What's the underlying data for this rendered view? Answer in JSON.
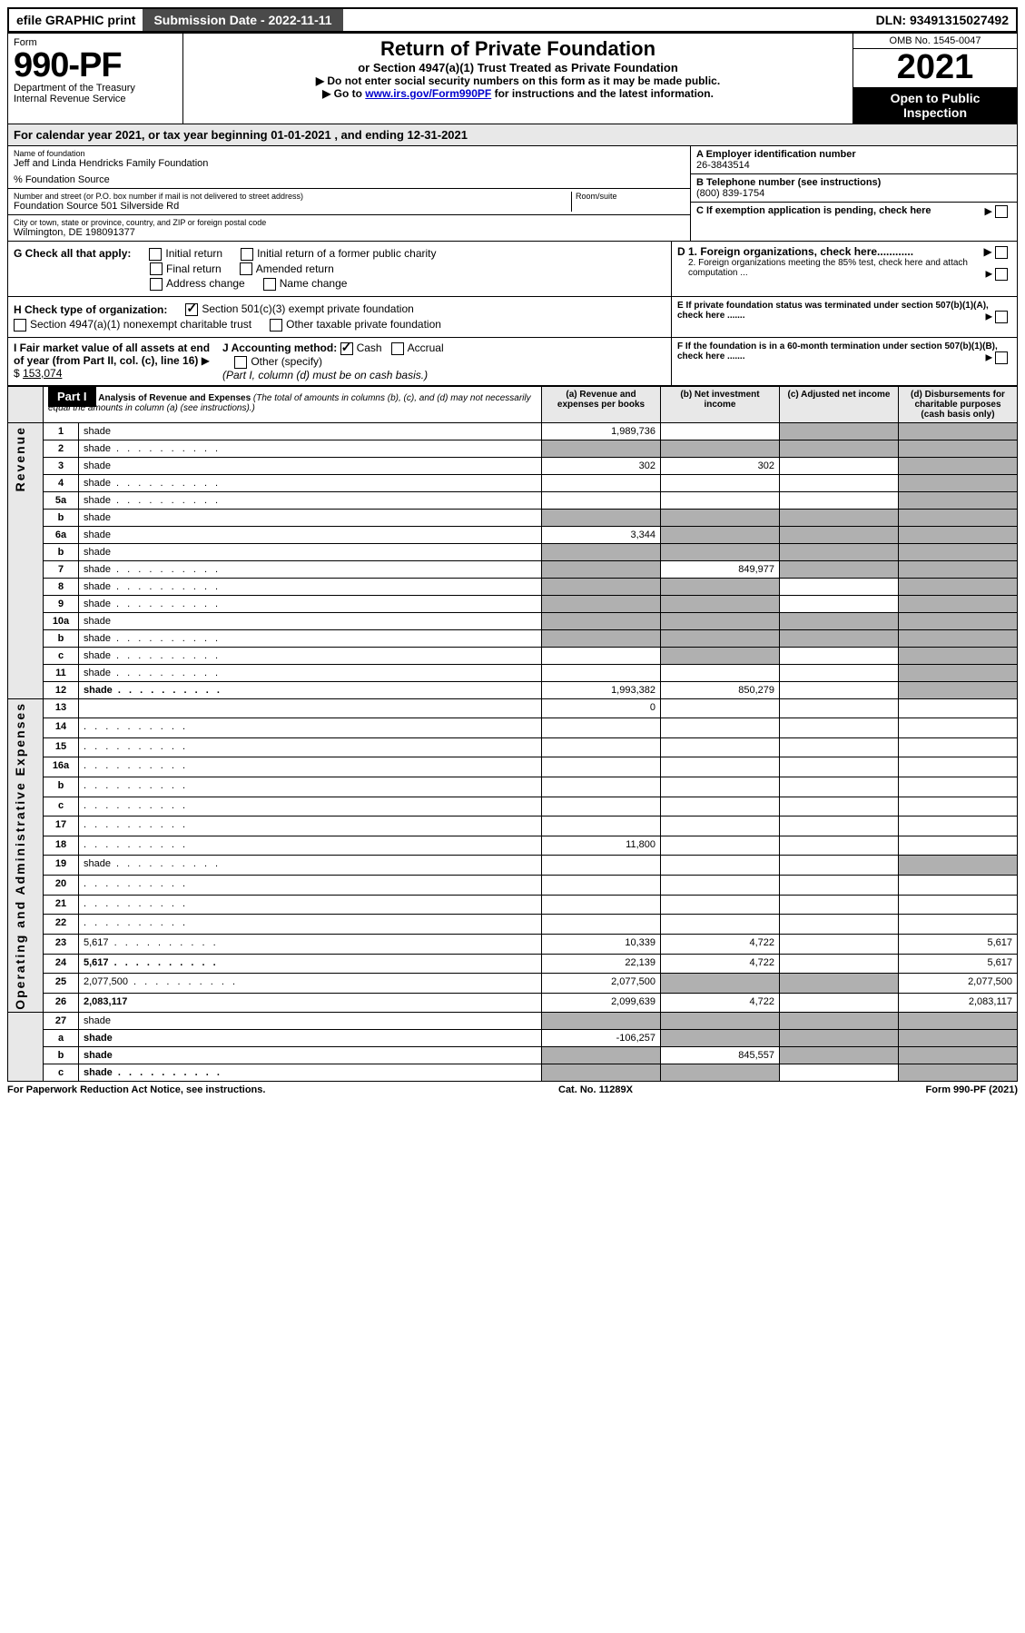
{
  "topbar": {
    "efile": "efile GRAPHIC print",
    "submission": "Submission Date - 2022-11-11",
    "dln": "DLN: 93491315027492"
  },
  "header": {
    "form_label": "Form",
    "form_number": "990-PF",
    "dept": "Department of the Treasury",
    "irs": "Internal Revenue Service",
    "title": "Return of Private Foundation",
    "subtitle": "or Section 4947(a)(1) Trust Treated as Private Foundation",
    "note1": "▶ Do not enter social security numbers on this form as it may be made public.",
    "note2_pre": "▶ Go to ",
    "note2_link": "www.irs.gov/Form990PF",
    "note2_post": " for instructions and the latest information.",
    "omb": "OMB No. 1545-0047",
    "year": "2021",
    "open": "Open to Public Inspection"
  },
  "calyear": "For calendar year 2021, or tax year beginning 01-01-2021               , and ending 12-31-2021",
  "entity": {
    "name_label": "Name of foundation",
    "name": "Jeff and Linda Hendricks Family Foundation",
    "care_of": "% Foundation Source",
    "addr_label": "Number and street (or P.O. box number if mail is not delivered to street address)",
    "addr": "Foundation Source 501 Silverside Rd",
    "room_label": "Room/suite",
    "city_label": "City or town, state or province, country, and ZIP or foreign postal code",
    "city": "Wilmington, DE  198091377",
    "ein_label": "A Employer identification number",
    "ein": "26-3843514",
    "phone_label": "B Telephone number (see instructions)",
    "phone": "(800) 839-1754",
    "c_label": "C If exemption application is pending, check here"
  },
  "sectionG": {
    "label": "G Check all that apply:",
    "opts": [
      "Initial return",
      "Initial return of a former public charity",
      "Final return",
      "Amended return",
      "Address change",
      "Name change"
    ],
    "h_label": "H Check type of organization:",
    "h1": "Section 501(c)(3) exempt private foundation",
    "h2": "Section 4947(a)(1) nonexempt charitable trust",
    "h3": "Other taxable private foundation",
    "i_label": "I Fair market value of all assets at end of year (from Part II, col. (c), line 16)",
    "i_val": "153,074",
    "j_label": "J Accounting method:",
    "j_cash": "Cash",
    "j_accrual": "Accrual",
    "j_other": "Other (specify)",
    "j_note": "(Part I, column (d) must be on cash basis.)",
    "d1": "D 1. Foreign organizations, check here............",
    "d2": "2. Foreign organizations meeting the 85% test, check here and attach computation ...",
    "e_label": "E  If private foundation status was terminated under section 507(b)(1)(A), check here .......",
    "f_label": "F  If the foundation is in a 60-month termination under section 507(b)(1)(B), check here .......",
    "arrow_box": "▶"
  },
  "part1": {
    "label": "Part I",
    "title": "Analysis of Revenue and Expenses",
    "note": "(The total of amounts in columns (b), (c), and (d) may not necessarily equal the amounts in column (a) (see instructions).)",
    "col_a": "(a)  Revenue and expenses per books",
    "col_b": "(b)  Net investment income",
    "col_c": "(c)  Adjusted net income",
    "col_d": "(d)  Disbursements for charitable purposes (cash basis only)"
  },
  "side": {
    "revenue": "Revenue",
    "expenses": "Operating and Administrative Expenses"
  },
  "rows": [
    {
      "n": "1",
      "d": "shade",
      "a": "1,989,736",
      "b": "",
      "c": "shade"
    },
    {
      "n": "2",
      "d": "shade",
      "a": "shade",
      "b": "shade",
      "c": "shade",
      "dotted": true
    },
    {
      "n": "3",
      "d": "shade",
      "a": "302",
      "b": "302",
      "c": ""
    },
    {
      "n": "4",
      "d": "shade",
      "a": "",
      "b": "",
      "c": "",
      "dotted": true
    },
    {
      "n": "5a",
      "d": "shade",
      "a": "",
      "b": "",
      "c": "",
      "dotted": true
    },
    {
      "n": "b",
      "d": "shade",
      "a": "shade",
      "b": "shade",
      "c": "shade",
      "underline": true
    },
    {
      "n": "6a",
      "d": "shade",
      "a": "3,344",
      "b": "shade",
      "c": "shade"
    },
    {
      "n": "b",
      "d": "shade",
      "a": "shade",
      "b": "shade",
      "c": "shade",
      "underline": true
    },
    {
      "n": "7",
      "d": "shade",
      "a": "shade",
      "b": "849,977",
      "c": "shade",
      "dotted": true
    },
    {
      "n": "8",
      "d": "shade",
      "a": "shade",
      "b": "shade",
      "c": "",
      "dotted": true
    },
    {
      "n": "9",
      "d": "shade",
      "a": "shade",
      "b": "shade",
      "c": "",
      "dotted": true
    },
    {
      "n": "10a",
      "d": "shade",
      "a": "shade",
      "b": "shade",
      "c": "shade",
      "underline": true
    },
    {
      "n": "b",
      "d": "shade",
      "a": "shade",
      "b": "shade",
      "c": "shade",
      "dotted": true,
      "underline": true
    },
    {
      "n": "c",
      "d": "shade",
      "a": "",
      "b": "shade",
      "c": "",
      "dotted": true
    },
    {
      "n": "11",
      "d": "shade",
      "a": "",
      "b": "",
      "c": "",
      "dotted": true
    },
    {
      "n": "12",
      "d": "shade",
      "a": "1,993,382",
      "b": "850,279",
      "c": "",
      "bold": true,
      "dotted": true
    }
  ],
  "exp_rows": [
    {
      "n": "13",
      "d": "",
      "a": "0",
      "b": "",
      "c": ""
    },
    {
      "n": "14",
      "d": "",
      "a": "",
      "b": "",
      "c": "",
      "dotted": true
    },
    {
      "n": "15",
      "d": "",
      "a": "",
      "b": "",
      "c": "",
      "dotted": true
    },
    {
      "n": "16a",
      "d": "",
      "a": "",
      "b": "",
      "c": "",
      "dotted": true
    },
    {
      "n": "b",
      "d": "",
      "a": "",
      "b": "",
      "c": "",
      "dotted": true
    },
    {
      "n": "c",
      "d": "",
      "a": "",
      "b": "",
      "c": "",
      "dotted": true
    },
    {
      "n": "17",
      "d": "",
      "a": "",
      "b": "",
      "c": "",
      "dotted": true
    },
    {
      "n": "18",
      "d": "",
      "a": "11,800",
      "b": "",
      "c": "",
      "dotted": true
    },
    {
      "n": "19",
      "d": "shade",
      "a": "",
      "b": "",
      "c": "",
      "dotted": true
    },
    {
      "n": "20",
      "d": "",
      "a": "",
      "b": "",
      "c": "",
      "dotted": true
    },
    {
      "n": "21",
      "d": "",
      "a": "",
      "b": "",
      "c": "",
      "dotted": true
    },
    {
      "n": "22",
      "d": "",
      "a": "",
      "b": "",
      "c": "",
      "dotted": true
    },
    {
      "n": "23",
      "d": "5,617",
      "a": "10,339",
      "b": "4,722",
      "c": "",
      "dotted": true
    },
    {
      "n": "24",
      "d": "5,617",
      "a": "22,139",
      "b": "4,722",
      "c": "",
      "bold": true,
      "dotted": true
    },
    {
      "n": "25",
      "d": "2,077,500",
      "a": "2,077,500",
      "b": "shade",
      "c": "shade",
      "dotted": true
    },
    {
      "n": "26",
      "d": "2,083,117",
      "a": "2,099,639",
      "b": "4,722",
      "c": "",
      "bold": true
    }
  ],
  "bottom_rows": [
    {
      "n": "27",
      "d": "shade",
      "a": "shade",
      "b": "shade",
      "c": "shade"
    },
    {
      "n": "a",
      "d": "shade",
      "a": "-106,257",
      "b": "shade",
      "c": "shade",
      "bold": true
    },
    {
      "n": "b",
      "d": "shade",
      "a": "shade",
      "b": "845,557",
      "c": "shade",
      "bold": true
    },
    {
      "n": "c",
      "d": "shade",
      "a": "shade",
      "b": "shade",
      "c": "",
      "bold": true,
      "dotted": true
    }
  ],
  "footer": {
    "left": "For Paperwork Reduction Act Notice, see instructions.",
    "mid": "Cat. No. 11289X",
    "right": "Form 990-PF (2021)"
  }
}
